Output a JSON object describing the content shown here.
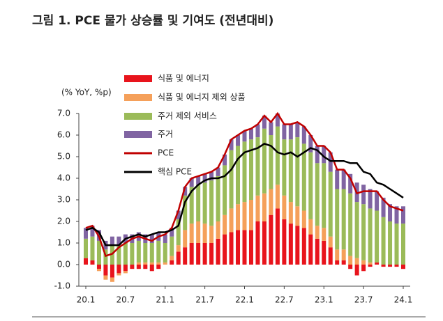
{
  "chart_data": {
    "type": "bar",
    "title": "그림 1. PCE 물가 상승률 및 기여도 (전년대비)",
    "y_label": "(% YoY, %p)",
    "categories": [
      "20.1",
      null,
      null,
      null,
      null,
      null,
      "20.7",
      null,
      null,
      null,
      null,
      null,
      "21.1",
      null,
      null,
      null,
      null,
      null,
      "21.7",
      null,
      null,
      null,
      null,
      null,
      "22.1",
      null,
      null,
      null,
      null,
      null,
      "22.7",
      null,
      null,
      null,
      null,
      null,
      "23.1",
      null,
      null,
      null,
      null,
      null,
      "23.7",
      null,
      null,
      null,
      null,
      null,
      "24.1"
    ],
    "ylim": [
      -1,
      7
    ],
    "yticks": [
      {
        "value": -1,
        "label": "-1.0"
      },
      {
        "value": 0,
        "label": "0.0"
      },
      {
        "value": 1,
        "label": "1.0"
      },
      {
        "value": 2,
        "label": "2.0"
      },
      {
        "value": 3,
        "label": "3.0"
      },
      {
        "value": 4,
        "label": "4.0"
      },
      {
        "value": 5,
        "label": "5.0"
      },
      {
        "value": 6,
        "label": "6.0"
      },
      {
        "value": 7,
        "label": "7.0"
      }
    ],
    "series": [
      {
        "name": "식품 및 에너지",
        "type": "bar",
        "color": "#e8141c",
        "values": [
          0.3,
          0.2,
          -0.2,
          -0.5,
          -0.6,
          -0.4,
          -0.3,
          -0.2,
          -0.2,
          -0.2,
          -0.3,
          -0.2,
          0.0,
          0.2,
          0.6,
          0.8,
          1.0,
          1.0,
          1.0,
          1.0,
          1.2,
          1.4,
          1.5,
          1.6,
          1.6,
          1.6,
          2.0,
          2.0,
          2.3,
          2.6,
          2.1,
          1.9,
          1.8,
          1.7,
          1.4,
          1.2,
          1.1,
          0.8,
          0.2,
          0.2,
          -0.2,
          -0.5,
          -0.3,
          -0.1,
          0.1,
          -0.1,
          -0.1,
          -0.1,
          -0.2
        ]
      },
      {
        "name": "식품 및 에너지 제외 상품",
        "type": "bar",
        "color": "#f5a05a",
        "values": [
          0.0,
          0.0,
          -0.1,
          -0.2,
          -0.2,
          -0.1,
          -0.1,
          0.0,
          0.1,
          0.1,
          0.1,
          0.1,
          0.1,
          0.2,
          0.3,
          0.8,
          0.9,
          1.0,
          0.9,
          0.8,
          0.8,
          0.9,
          1.1,
          1.2,
          1.3,
          1.4,
          1.2,
          1.3,
          1.2,
          1.1,
          1.1,
          1.0,
          0.9,
          0.8,
          0.7,
          0.6,
          0.6,
          0.5,
          0.5,
          0.5,
          0.4,
          0.3,
          0.2,
          0.1,
          0.0,
          0.0,
          0.0,
          0.0,
          0.0
        ]
      },
      {
        "name": "주거 제외 서비스",
        "type": "bar",
        "color": "#9bbb59",
        "values": [
          0.9,
          1.1,
          1.1,
          0.7,
          0.9,
          0.9,
          1.0,
          1.0,
          1.0,
          0.9,
          0.9,
          1.0,
          0.9,
          0.9,
          1.2,
          1.6,
          1.7,
          1.7,
          1.9,
          2.1,
          2.1,
          2.3,
          2.7,
          2.7,
          2.8,
          2.8,
          2.7,
          3.0,
          2.5,
          2.7,
          2.6,
          2.9,
          3.2,
          3.1,
          3.1,
          2.9,
          3.0,
          3.0,
          2.8,
          2.8,
          2.9,
          2.6,
          2.6,
          2.5,
          2.4,
          2.2,
          2.0,
          1.9,
          1.9
        ]
      },
      {
        "name": "주거",
        "type": "bar",
        "color": "#8064a2",
        "values": [
          0.5,
          0.5,
          0.5,
          0.4,
          0.4,
          0.4,
          0.4,
          0.4,
          0.4,
          0.4,
          0.4,
          0.4,
          0.4,
          0.4,
          0.4,
          0.4,
          0.4,
          0.4,
          0.4,
          0.4,
          0.4,
          0.5,
          0.5,
          0.5,
          0.5,
          0.5,
          0.6,
          0.6,
          0.6,
          0.6,
          0.7,
          0.7,
          0.7,
          0.8,
          0.8,
          0.8,
          0.8,
          0.9,
          0.9,
          0.9,
          0.9,
          0.9,
          0.9,
          0.9,
          0.9,
          0.9,
          0.8,
          0.8,
          0.8
        ]
      },
      {
        "name": "PCE",
        "type": "line",
        "color": "#c00000",
        "values": [
          1.7,
          1.8,
          1.3,
          0.4,
          0.5,
          0.8,
          1.0,
          1.2,
          1.3,
          1.2,
          1.1,
          1.3,
          1.4,
          1.7,
          2.5,
          3.6,
          4.0,
          4.1,
          4.2,
          4.3,
          4.5,
          5.1,
          5.8,
          6.0,
          6.2,
          6.3,
          6.5,
          6.9,
          6.6,
          7.0,
          6.5,
          6.5,
          6.6,
          6.4,
          6.0,
          5.5,
          5.5,
          5.2,
          4.4,
          4.4,
          4.0,
          3.3,
          3.4,
          3.4,
          3.4,
          3.0,
          2.7,
          2.6,
          2.5
        ]
      },
      {
        "name": "핵심 PCE",
        "type": "line",
        "color": "#000000",
        "values": [
          1.6,
          1.7,
          1.5,
          0.9,
          0.9,
          0.9,
          1.2,
          1.3,
          1.4,
          1.3,
          1.4,
          1.5,
          1.5,
          1.6,
          1.8,
          2.9,
          3.4,
          3.7,
          3.9,
          4.0,
          4.0,
          4.1,
          4.4,
          4.9,
          5.2,
          5.3,
          5.4,
          5.6,
          5.5,
          5.2,
          5.1,
          5.2,
          5.0,
          5.2,
          5.4,
          5.3,
          5.0,
          4.8,
          4.8,
          4.8,
          4.7,
          4.7,
          4.3,
          4.2,
          3.8,
          3.7,
          3.5,
          3.3,
          3.1
        ]
      }
    ]
  }
}
